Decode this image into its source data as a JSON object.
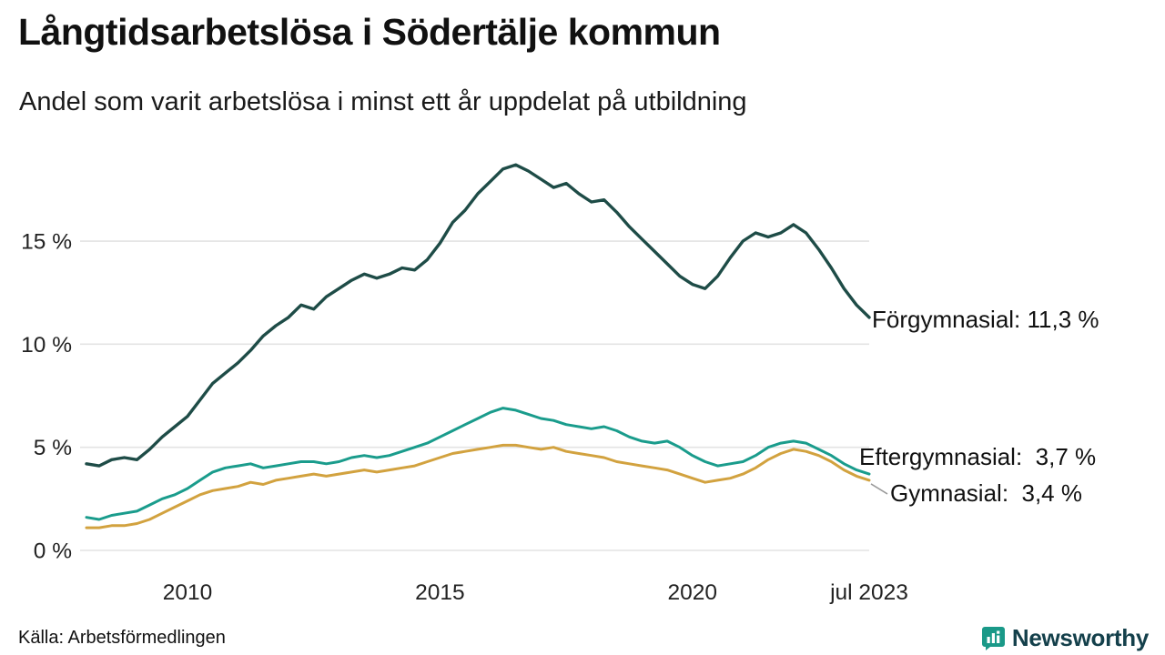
{
  "title": "Långtidsarbetslösa i Södertälje kommun",
  "subtitle": "Andel som varit arbetslösa i minst ett år uppdelat på utbildning",
  "source": "Källa: Arbetsförmedlingen",
  "brand": {
    "name": "Newsworthy",
    "icon": "bar-chart-bubble-icon",
    "icon_color": "#1a9988",
    "text_color": "#14404b"
  },
  "chart_data": {
    "type": "line",
    "title": "Långtidsarbetslösa i Södertälje kommun",
    "subtitle": "Andel som varit arbetslösa i minst ett år uppdelat på utbildning",
    "x_unit": "year (quarterly points)",
    "x_start": 2008.0,
    "x_step": 0.25,
    "x_end": 2023.5,
    "ylim": [
      0,
      19.5
    ],
    "grid": "horizontal",
    "x_ticks": [
      {
        "label": "2010",
        "t": 2010
      },
      {
        "label": "2015",
        "t": 2015
      },
      {
        "label": "2020",
        "t": 2020
      },
      {
        "label": "jul 2023",
        "t": 2023.5
      }
    ],
    "y_ticks": [
      {
        "label": "0 %",
        "v": 0
      },
      {
        "label": "5 %",
        "v": 5
      },
      {
        "label": "10 %",
        "v": 10
      },
      {
        "label": "15 %",
        "v": 15
      }
    ],
    "series": [
      {
        "name": "Gymnasial",
        "color": "#d2a23f",
        "end_value": "3,4 %",
        "end_label": "Gymnasial:  3,4 %",
        "values": [
          1.1,
          1.1,
          1.2,
          1.2,
          1.3,
          1.5,
          1.8,
          2.1,
          2.4,
          2.7,
          2.9,
          3.0,
          3.1,
          3.3,
          3.2,
          3.4,
          3.5,
          3.6,
          3.7,
          3.6,
          3.7,
          3.8,
          3.9,
          3.8,
          3.9,
          4.0,
          4.1,
          4.3,
          4.5,
          4.7,
          4.8,
          4.9,
          5.0,
          5.1,
          5.1,
          5.0,
          4.9,
          5.0,
          4.8,
          4.7,
          4.6,
          4.5,
          4.3,
          4.2,
          4.1,
          4.0,
          3.9,
          3.7,
          3.5,
          3.3,
          3.4,
          3.5,
          3.7,
          4.0,
          4.4,
          4.7,
          4.9,
          4.8,
          4.6,
          4.3,
          3.9,
          3.6,
          3.4
        ]
      },
      {
        "name": "Eftergymnasial",
        "color": "#1a9c8c",
        "end_value": "3,7 %",
        "end_label": "Eftergymnasial:  3,7 %",
        "values": [
          1.6,
          1.5,
          1.7,
          1.8,
          1.9,
          2.2,
          2.5,
          2.7,
          3.0,
          3.4,
          3.8,
          4.0,
          4.1,
          4.2,
          4.0,
          4.1,
          4.2,
          4.3,
          4.3,
          4.2,
          4.3,
          4.5,
          4.6,
          4.5,
          4.6,
          4.8,
          5.0,
          5.2,
          5.5,
          5.8,
          6.1,
          6.4,
          6.7,
          6.9,
          6.8,
          6.6,
          6.4,
          6.3,
          6.1,
          6.0,
          5.9,
          6.0,
          5.8,
          5.5,
          5.3,
          5.2,
          5.3,
          5.0,
          4.6,
          4.3,
          4.1,
          4.2,
          4.3,
          4.6,
          5.0,
          5.2,
          5.3,
          5.2,
          4.9,
          4.6,
          4.2,
          3.9,
          3.7
        ]
      },
      {
        "name": "Förgymnasial",
        "color": "#1e4c47",
        "end_value": "11,3 %",
        "end_label": "Förgymnasial: 11,3 %",
        "values": [
          4.2,
          4.1,
          4.4,
          4.5,
          4.4,
          4.9,
          5.5,
          6.0,
          6.5,
          7.3,
          8.1,
          8.6,
          9.1,
          9.7,
          10.4,
          10.9,
          11.3,
          11.9,
          11.7,
          12.3,
          12.7,
          13.1,
          13.4,
          13.2,
          13.4,
          13.7,
          13.6,
          14.1,
          14.9,
          15.9,
          16.5,
          17.3,
          17.9,
          18.5,
          18.7,
          18.4,
          18.0,
          17.6,
          17.8,
          17.3,
          16.9,
          17.0,
          16.4,
          15.7,
          15.1,
          14.5,
          13.9,
          13.3,
          12.9,
          12.7,
          13.3,
          14.2,
          15.0,
          15.4,
          15.2,
          15.4,
          15.8,
          15.4,
          14.6,
          13.7,
          12.7,
          11.9,
          11.3
        ]
      }
    ]
  }
}
